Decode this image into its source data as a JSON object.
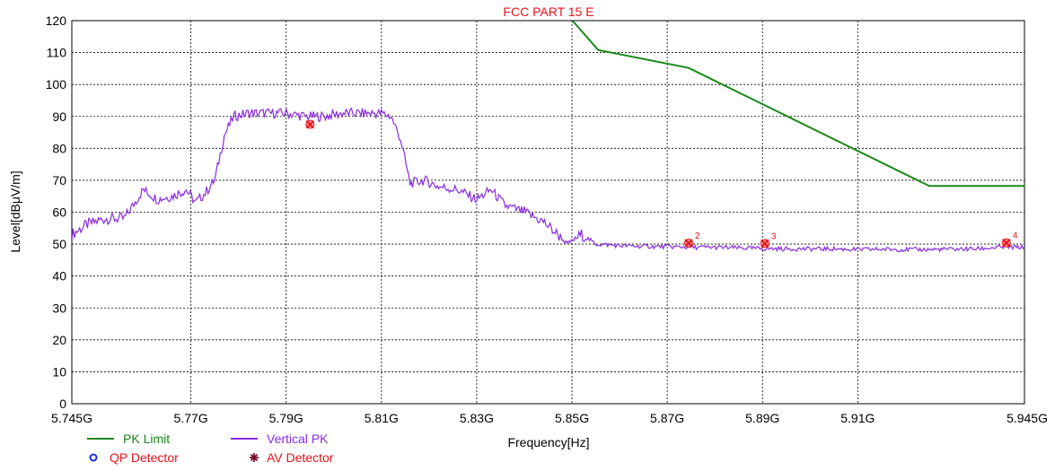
{
  "chart_data": {
    "type": "line",
    "title": "FCC PART 15 E",
    "xlabel": "Frequency[Hz]",
    "ylabel": "Level[dBμV/m]",
    "xlim": [
      5.745,
      5.945
    ],
    "ylim": [
      0,
      120
    ],
    "grid": true,
    "x_ticks": [
      {
        "value": 5.745,
        "label": "5.745G"
      },
      {
        "value": 5.77,
        "label": "5.77G"
      },
      {
        "value": 5.79,
        "label": "5.79G"
      },
      {
        "value": 5.81,
        "label": "5.81G"
      },
      {
        "value": 5.83,
        "label": "5.83G"
      },
      {
        "value": 5.85,
        "label": "5.85G"
      },
      {
        "value": 5.87,
        "label": "5.87G"
      },
      {
        "value": 5.89,
        "label": "5.89G"
      },
      {
        "value": 5.91,
        "label": "5.91G"
      },
      {
        "value": 5.945,
        "label": "5.945G"
      }
    ],
    "y_ticks": [
      {
        "value": 0,
        "label": "0"
      },
      {
        "value": 10,
        "label": "10"
      },
      {
        "value": 20,
        "label": "20"
      },
      {
        "value": 30,
        "label": "30"
      },
      {
        "value": 40,
        "label": "40"
      },
      {
        "value": 50,
        "label": "50"
      },
      {
        "value": 60,
        "label": "60"
      },
      {
        "value": 70,
        "label": "70"
      },
      {
        "value": 80,
        "label": "80"
      },
      {
        "value": 90,
        "label": "90"
      },
      {
        "value": 100,
        "label": "100"
      },
      {
        "value": 110,
        "label": "110"
      },
      {
        "value": 120,
        "label": "120"
      }
    ],
    "series": [
      {
        "name": "PK Limit",
        "color": "#1a8a1a",
        "x": [
          5.8501,
          5.8555,
          5.8745,
          5.925,
          5.945
        ],
        "y": [
          120,
          110.8,
          105.2,
          68.2,
          68.2
        ]
      },
      {
        "name": "Vertical PK",
        "color": "#8a2be2",
        "x": [
          5.745,
          5.748,
          5.752,
          5.756,
          5.76,
          5.763,
          5.766,
          5.769,
          5.771,
          5.773,
          5.775,
          5.777,
          5.779,
          5.782,
          5.786,
          5.79,
          5.794,
          5.798,
          5.802,
          5.806,
          5.81,
          5.812,
          5.814,
          5.816,
          5.819,
          5.822,
          5.826,
          5.83,
          5.833,
          5.836,
          5.84,
          5.844,
          5.847,
          5.849,
          5.852,
          5.855,
          5.86,
          5.865,
          5.87,
          5.875,
          5.88,
          5.885,
          5.89,
          5.895,
          5.9,
          5.905,
          5.91,
          5.915,
          5.92,
          5.925,
          5.93,
          5.935,
          5.94,
          5.945
        ],
        "y": [
          53,
          56,
          58,
          58,
          67,
          64,
          65,
          67,
          63,
          66,
          70,
          84,
          90,
          91,
          91,
          91,
          90,
          90,
          91,
          91,
          91,
          90,
          83,
          69,
          70,
          68,
          67,
          64,
          67,
          62,
          60,
          57,
          53,
          50,
          53,
          50,
          49.5,
          49.3,
          49.2,
          49,
          49,
          48.8,
          48.6,
          48.5,
          48.5,
          48.5,
          48.3,
          48.4,
          48.3,
          48.3,
          48.4,
          48.5,
          49,
          49
        ]
      }
    ],
    "markers": [
      {
        "label": "",
        "x": 5.795,
        "y": 87.5
      },
      {
        "label": "2",
        "x": 5.8745,
        "y": 50.3
      },
      {
        "label": "3",
        "x": 5.8905,
        "y": 50.2
      },
      {
        "label": "4",
        "x": 5.9412,
        "y": 50.4
      }
    ],
    "legend": {
      "placement": "bottom-left",
      "items": [
        {
          "label": "PK Limit",
          "symbol": "line",
          "color": "#1a8a1a",
          "text_color": "#1a8a1a"
        },
        {
          "label": "Vertical PK",
          "symbol": "line",
          "color": "#8a2be2",
          "text_color": "#8a2be2"
        },
        {
          "label": "QP Detector",
          "symbol": "circle",
          "color": "#1f2fd6",
          "text_color": "#e8121b"
        },
        {
          "label": "AV Detector",
          "symbol": "star",
          "color": "#7a0d2a",
          "text_color": "#e8121b"
        }
      ]
    }
  }
}
